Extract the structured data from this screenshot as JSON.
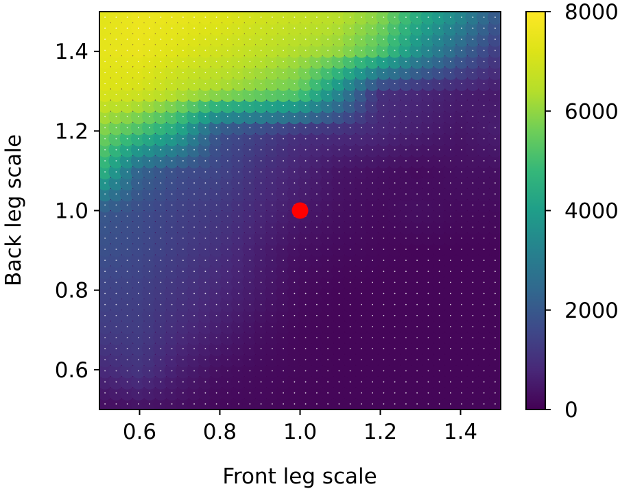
{
  "chart_data": {
    "type": "heatmap",
    "title": "",
    "xlabel": "Front leg scale",
    "ylabel": "Back leg scale",
    "xlim": [
      0.5,
      1.5
    ],
    "ylim": [
      0.5,
      1.5
    ],
    "xticks": [
      "0.6",
      "0.8",
      "1.0",
      "1.2",
      "1.4"
    ],
    "yticks": [
      "0.6",
      "0.8",
      "1.0",
      "1.2",
      "1.4"
    ],
    "x_values": [
      0.5,
      0.6,
      0.7,
      0.8,
      0.9,
      1.0,
      1.1,
      1.2,
      1.3,
      1.4,
      1.5
    ],
    "y_values": [
      0.5,
      0.6,
      0.7,
      0.8,
      0.9,
      1.0,
      1.1,
      1.2,
      1.3,
      1.4,
      1.5
    ],
    "z_rows_bottom_to_top": [
      [
        200,
        300,
        250,
        150,
        150,
        100,
        100,
        100,
        100,
        100,
        100
      ],
      [
        800,
        1100,
        600,
        300,
        200,
        150,
        100,
        100,
        100,
        100,
        100
      ],
      [
        1300,
        1300,
        900,
        600,
        300,
        150,
        100,
        100,
        100,
        100,
        100
      ],
      [
        1500,
        1400,
        1100,
        800,
        500,
        200,
        100,
        100,
        100,
        100,
        100
      ],
      [
        1800,
        1600,
        1300,
        1000,
        600,
        300,
        200,
        150,
        100,
        100,
        100
      ],
      [
        2000,
        1700,
        1400,
        1200,
        800,
        500,
        300,
        200,
        300,
        200,
        200
      ],
      [
        4800,
        2300,
        1700,
        1500,
        1000,
        700,
        400,
        300,
        200,
        300,
        300
      ],
      [
        5800,
        5000,
        4100,
        1800,
        1400,
        1000,
        900,
        800,
        600,
        400,
        600
      ],
      [
        7200,
        7000,
        6500,
        6200,
        5800,
        5500,
        3400,
        1000,
        800,
        600,
        500
      ],
      [
        7400,
        7500,
        7200,
        6900,
        6600,
        6300,
        6000,
        5200,
        3500,
        2300,
        1200
      ],
      [
        7300,
        7600,
        7500,
        7300,
        7000,
        6800,
        6500,
        6000,
        4500,
        3500,
        2000
      ]
    ],
    "marker": {
      "x": 1.0,
      "y": 1.0,
      "color": "#ff0000"
    },
    "colorbar": {
      "min": 0,
      "max": 8000,
      "ticks": [
        "0",
        "2000",
        "4000",
        "6000",
        "8000"
      ],
      "colormap": "viridis"
    },
    "grid": false,
    "legend": "none"
  }
}
